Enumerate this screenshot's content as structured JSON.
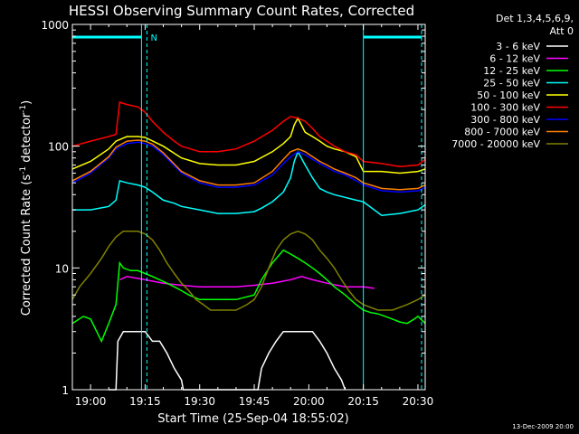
{
  "chart_data": {
    "type": "line",
    "title": "HESSI Observing Summary Count Rates, Corrected",
    "xlabel": "Start Time (25-Sep-04 18:55:02)",
    "ylabel_main": "Corrected Count Rate (s",
    "ylabel_sup1": "-1",
    "ylabel_mid": " detector",
    "ylabel_sup2": "-1",
    "ylabel_end": ")",
    "yscale": "log",
    "ylim": [
      1,
      1000
    ],
    "xlim_minutes": [
      0,
      97
    ],
    "x_ticks": [
      {
        "label": "19:00",
        "min": 5
      },
      {
        "label": "19:15",
        "min": 20
      },
      {
        "label": "19:30",
        "min": 35
      },
      {
        "label": "19:45",
        "min": 50
      },
      {
        "label": "20:00",
        "min": 65
      },
      {
        "label": "20:15",
        "min": 80
      },
      {
        "label": "20:30",
        "min": 95
      }
    ],
    "y_ticks": [
      {
        "label": "1",
        "v": 1
      },
      {
        "label": "10",
        "v": 10
      },
      {
        "label": "100",
        "v": 100
      },
      {
        "label": "1000",
        "v": 1000
      }
    ],
    "legend_header": [
      "Det 1,3,4,5,6,9,",
      "Att 0"
    ],
    "legend_position": "right",
    "series": [
      {
        "name": "3 - 6 keV",
        "color": "#ffffff",
        "x": [
          10,
          12,
          12.5,
          14,
          16,
          18,
          20,
          22,
          24,
          26,
          28,
          30,
          30.5,
          40,
          51,
          52,
          54,
          56,
          58,
          60,
          62,
          64,
          66,
          68,
          70,
          72,
          74,
          75
        ],
        "y": [
          1,
          1,
          2.5,
          3,
          3,
          3,
          3,
          2.5,
          2.5,
          2,
          1.5,
          1.2,
          1,
          1,
          1,
          1.5,
          2,
          2.5,
          3,
          3,
          3,
          3,
          3,
          2.5,
          2,
          1.5,
          1.2,
          1
        ]
      },
      {
        "name": "6 - 12 keV",
        "color": "#ff00ff",
        "x": [
          13,
          15,
          20,
          25,
          30,
          35,
          40,
          45,
          50,
          55,
          60,
          63,
          66,
          70,
          75,
          80,
          83
        ],
        "y": [
          8,
          8.5,
          8,
          7.5,
          7.2,
          7,
          7,
          7,
          7.2,
          7.5,
          8,
          8.5,
          8,
          7.5,
          7,
          7,
          6.8
        ]
      },
      {
        "name": "12 - 25 keV",
        "color": "#00ff00",
        "x": [
          0,
          3,
          5,
          8,
          10,
          12,
          13,
          14,
          16,
          18,
          20,
          22,
          24,
          26,
          28,
          30,
          32,
          35,
          40,
          45,
          50,
          52,
          55,
          58,
          60,
          62,
          64,
          66,
          68,
          70,
          72,
          75,
          78,
          80,
          82,
          84,
          86,
          88,
          90,
          92,
          94,
          95,
          97
        ],
        "y": [
          3.5,
          4,
          3.8,
          2.5,
          3.5,
          5,
          11,
          10,
          9.5,
          9.5,
          9,
          8.5,
          8,
          7.5,
          7,
          6.5,
          6,
          5.5,
          5.5,
          5.5,
          6,
          8,
          11,
          14,
          13,
          12,
          11,
          10,
          9,
          8,
          7,
          6,
          5,
          4.5,
          4.3,
          4.2,
          4,
          3.8,
          3.6,
          3.5,
          3.8,
          4,
          3.5
        ]
      },
      {
        "name": "25 - 50 keV",
        "color": "#00ffff",
        "x": [
          0,
          5,
          10,
          12,
          13,
          15,
          18,
          20,
          22,
          25,
          28,
          30,
          35,
          40,
          45,
          50,
          52,
          55,
          58,
          60,
          61,
          62,
          64,
          66,
          68,
          70,
          72,
          75,
          78,
          80,
          85,
          90,
          95,
          97
        ],
        "y": [
          30,
          30,
          32,
          36,
          52,
          50,
          48,
          46,
          42,
          36,
          34,
          32,
          30,
          28,
          28,
          29,
          31,
          35,
          42,
          55,
          75,
          90,
          70,
          55,
          45,
          42,
          40,
          38,
          36,
          35,
          27,
          28,
          30,
          33
        ]
      },
      {
        "name": "50 - 100 keV",
        "color": "#ffff00",
        "x": [
          0,
          5,
          10,
          12,
          15,
          18,
          20,
          25,
          30,
          35,
          40,
          45,
          50,
          55,
          58,
          60,
          61,
          62,
          64,
          66,
          68,
          70,
          72,
          75,
          78,
          80,
          85,
          90,
          95,
          97
        ],
        "y": [
          65,
          75,
          95,
          110,
          120,
          120,
          118,
          100,
          80,
          72,
          70,
          70,
          75,
          90,
          105,
          120,
          150,
          170,
          130,
          120,
          110,
          100,
          95,
          90,
          82,
          62,
          62,
          60,
          62,
          65
        ]
      },
      {
        "name": "100 - 300 keV",
        "color": "#ff0000",
        "x": [
          0,
          5,
          10,
          12,
          13,
          15,
          18,
          20,
          22,
          25,
          28,
          30,
          35,
          40,
          45,
          50,
          55,
          58,
          60,
          62,
          64,
          66,
          68,
          70,
          72,
          75,
          78,
          80,
          85,
          90,
          95,
          97
        ],
        "y": [
          100,
          110,
          120,
          125,
          230,
          220,
          210,
          190,
          160,
          130,
          110,
          100,
          90,
          90,
          95,
          110,
          135,
          160,
          175,
          170,
          160,
          140,
          120,
          110,
          100,
          90,
          85,
          75,
          72,
          68,
          70,
          78
        ]
      },
      {
        "name": "300 - 800 keV",
        "color": "#0000ff",
        "x": [
          0,
          5,
          10,
          12,
          15,
          18,
          20,
          22,
          25,
          30,
          35,
          40,
          45,
          50,
          55,
          58,
          60,
          62,
          64,
          66,
          68,
          70,
          72,
          75,
          78,
          80,
          82,
          85,
          90,
          95,
          97
        ],
        "y": [
          50,
          60,
          80,
          95,
          105,
          108,
          105,
          100,
          85,
          60,
          50,
          46,
          46,
          48,
          58,
          72,
          82,
          90,
          85,
          78,
          72,
          67,
          62,
          58,
          52,
          48,
          46,
          43,
          42,
          43,
          46
        ]
      },
      {
        "name": "800 - 7000 keV",
        "color": "#ff8000",
        "x": [
          0,
          5,
          10,
          12,
          15,
          18,
          20,
          22,
          25,
          30,
          35,
          40,
          45,
          50,
          55,
          58,
          60,
          62,
          64,
          66,
          68,
          70,
          72,
          75,
          78,
          80,
          82,
          85,
          90,
          95,
          97
        ],
        "y": [
          52,
          62,
          82,
          98,
          110,
          112,
          110,
          104,
          88,
          62,
          52,
          48,
          48,
          50,
          62,
          78,
          90,
          95,
          90,
          82,
          75,
          70,
          65,
          60,
          55,
          50,
          48,
          45,
          44,
          45,
          48
        ]
      },
      {
        "name": "7000 - 20000 keV",
        "color": "#808000",
        "x": [
          0,
          2,
          5,
          8,
          10,
          12,
          14,
          16,
          18,
          20,
          22,
          24,
          26,
          28,
          30,
          32,
          34,
          36,
          38,
          40,
          42,
          45,
          48,
          50,
          52,
          54,
          56,
          58,
          60,
          62,
          64,
          66,
          68,
          70,
          72,
          74,
          76,
          78,
          80,
          84,
          88,
          92,
          95,
          97
        ],
        "y": [
          5.5,
          7,
          9,
          12,
          15,
          18,
          20,
          20,
          20,
          19,
          17,
          14,
          11,
          9,
          7.5,
          6.5,
          5.5,
          5,
          4.5,
          4.5,
          4.5,
          4.5,
          5,
          5.5,
          7,
          10,
          14,
          17,
          19,
          20,
          19,
          17,
          14,
          12,
          10,
          8,
          6.5,
          5.5,
          5,
          4.5,
          4.5,
          5,
          5.5,
          6
        ]
      }
    ],
    "attenuator_bars": [
      {
        "from": 0,
        "to": 19
      },
      {
        "from": 80,
        "to": 96
      }
    ],
    "state_lines": [
      {
        "min": 19,
        "style": "solid"
      },
      {
        "min": 20.5,
        "style": "dashed"
      },
      {
        "min": 80,
        "style": "solid"
      },
      {
        "min": 96,
        "style": "dashed"
      }
    ],
    "annotation_label": "N",
    "annotation_at": 21.5,
    "timestamp": "13-Dec-2009 20:00",
    "colors": {
      "background": "#000000",
      "axes": "#ffffff",
      "cyan": "#00ffff"
    }
  }
}
